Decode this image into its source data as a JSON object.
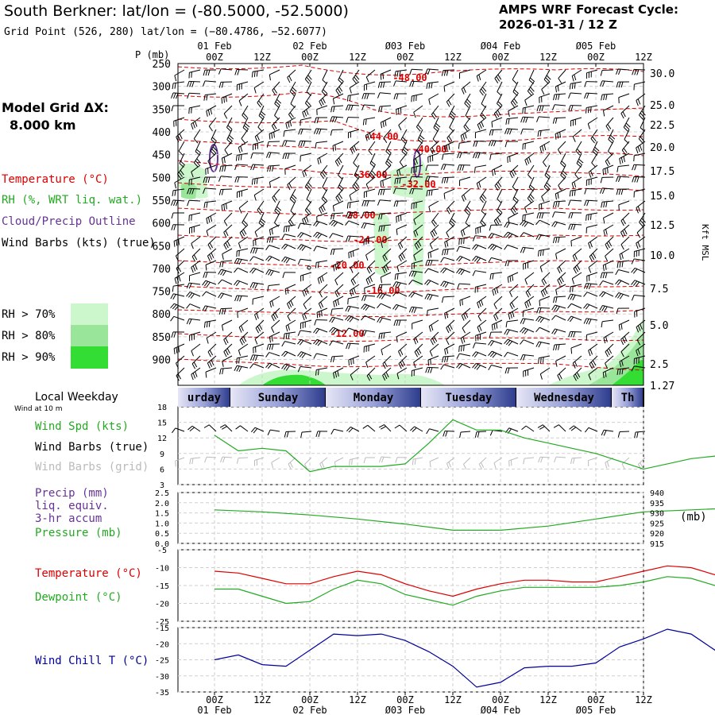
{
  "header": {
    "title": "South Berkner: lat/lon = (-80.5000, -52.5000)",
    "grid_point": "Grid Point (526, 280) lat/lon = (−80.4786, −52.6077)",
    "cycle_label": "AMPS WRF Forecast Cycle:",
    "cycle_value": "2026-01-31 / 12  Z"
  },
  "sidebar": {
    "model_grid_label": "Model Grid ΔX:",
    "model_grid_value": "8.000 km",
    "legend": [
      {
        "label": "Temperature (°C)",
        "color": "#dd0000"
      },
      {
        "label": "RH (%, WRT liq. wat.)",
        "color": "#22aa22"
      },
      {
        "label": "Cloud/Precip Outline",
        "color": "#663399"
      },
      {
        "label": "Wind Barbs (kts) (true)",
        "color": "#000000"
      }
    ],
    "rh_legend": [
      {
        "label": "RH > 70%",
        "color": "#ccf6cc"
      },
      {
        "label": "RH > 80%",
        "color": "#99e599"
      },
      {
        "label": "RH > 90%",
        "color": "#33dd33"
      }
    ],
    "local_weekday": "Local Weekday",
    "wind_at_10m": "Wind at 10 m",
    "wind_legend": [
      {
        "label": "Wind Spd (kts)",
        "color": "#22aa22"
      },
      {
        "label": "Wind Barbs (true)",
        "color": "#000000"
      },
      {
        "label": "Wind Barbs (grid)",
        "color": "#bbbbbb"
      }
    ],
    "precip_legend": [
      {
        "label": "Precip (mm)",
        "color": "#663399"
      },
      {
        "label": "liq. equiv.",
        "color": "#663399"
      },
      {
        "label": "3-hr accum",
        "color": "#663399"
      },
      {
        "label": "Pressure (mb)",
        "color": "#22aa22"
      }
    ],
    "temp_legend": [
      {
        "label": "Temperature (°C)",
        "color": "#dd0000"
      },
      {
        "label": "Dewpoint (°C)",
        "color": "#22aa22"
      }
    ],
    "chill_legend": [
      {
        "label": "Wind Chill T (°C)",
        "color": "#000099"
      }
    ],
    "pressure_unit": "(mb)"
  },
  "colors": {
    "temperature": "#dd0000",
    "dewpoint": "#22aa22",
    "windspeed": "#22aa22",
    "pressure": "#22aa22",
    "windchill": "#000099",
    "cloud": "#663399"
  },
  "chart_data": [
    {
      "type": "cross-section",
      "title": "Vertical time section",
      "y_label": "P (mb)",
      "y_label_right": "Kft MSL",
      "pressure_ticks": [
        "250",
        "300",
        "350",
        "400",
        "450",
        "500",
        "550",
        "600",
        "650",
        "700",
        "750",
        "800",
        "850",
        "900"
      ],
      "height_ticks": [
        "30.0",
        "25.0",
        "22.5",
        "20.0",
        "17.5",
        "15.0",
        "12.5",
        "10.0",
        "7.5",
        "5.0",
        "2.5",
        "1.27"
      ],
      "time_ticks_top": [
        "00Z",
        "12Z",
        "00Z",
        "12Z",
        "00Z",
        "12Z",
        "00Z",
        "12Z",
        "00Z",
        "12Z"
      ],
      "date_labels_top": [
        "01 Feb",
        "02 Feb",
        "Ø03 Feb",
        "Ø04 Feb",
        "Ø05 Feb"
      ],
      "temperature_contour_labels": [
        "-48.00",
        "-44.00",
        "-40.00",
        "-36.00",
        "-32.00",
        "-28.00",
        "-24.00",
        "-20.00",
        "-16.00",
        "-12.00"
      ]
    },
    {
      "type": "weekday-band",
      "days": [
        "urday",
        "Sunday",
        "Monday",
        "Tuesday",
        "Wednesday",
        "Th"
      ]
    },
    {
      "type": "line",
      "title": "Wind Speed",
      "ylim": [
        3,
        18
      ],
      "yticks": [
        "18",
        "15",
        "12",
        "9",
        "6",
        "3"
      ],
      "x_hours": [
        0,
        6,
        12,
        18,
        24,
        30,
        36,
        42,
        48,
        54,
        60,
        66,
        72,
        78,
        84,
        90,
        96,
        102,
        108,
        114,
        120,
        126,
        132,
        138,
        144,
        150,
        156,
        162,
        168
      ],
      "series": [
        {
          "name": "Wind Spd (kts)",
          "values": [
            12.5,
            9.5,
            10,
            9.5,
            5.5,
            6.5,
            6.5,
            6.5,
            7,
            11,
            15.5,
            13.5,
            13.5,
            12,
            11,
            10,
            9,
            7.5,
            6,
            7,
            8,
            8.5,
            9,
            6,
            7,
            8.5,
            8,
            8,
            7
          ]
        }
      ]
    },
    {
      "type": "line",
      "title": "Pressure",
      "ylim": [
        915,
        940
      ],
      "yticks_left": [
        "2.5",
        "2.0",
        "1.5",
        "1.0",
        "0.5",
        "0.0"
      ],
      "yticks_right": [
        "940",
        "935",
        "930",
        "925",
        "920",
        "915"
      ],
      "x_hours": [
        0,
        12,
        24,
        36,
        48,
        60,
        72,
        84,
        96,
        108,
        120,
        132,
        144,
        156,
        168
      ],
      "series": [
        {
          "name": "Pressure (mb)",
          "values": [
            931.5,
            930.5,
            929,
            927,
            924.5,
            921.5,
            921.5,
            923.5,
            927,
            930.5,
            931.5,
            932.5,
            933,
            934.5,
            935
          ]
        }
      ]
    },
    {
      "type": "line",
      "title": "Temperature / Dewpoint",
      "ylim": [
        -25,
        -5
      ],
      "yticks": [
        "-5",
        "-10",
        "-15",
        "-20",
        "-25"
      ],
      "x_hours": [
        0,
        6,
        12,
        18,
        24,
        30,
        36,
        42,
        48,
        54,
        60,
        66,
        72,
        78,
        84,
        90,
        96,
        102,
        108,
        114,
        120,
        126,
        132,
        138,
        144,
        150,
        156,
        162,
        168
      ],
      "series": [
        {
          "name": "Temperature (°C)",
          "values": [
            -11,
            -11.5,
            -13,
            -14.5,
            -14.5,
            -12.5,
            -11,
            -12,
            -14.5,
            -16.5,
            -18,
            -16,
            -14.5,
            -13.5,
            -13.5,
            -14,
            -14,
            -12.5,
            -11,
            -9.5,
            -10,
            -12,
            -13,
            -10.5,
            -10,
            -11.5,
            -13,
            -13,
            -11.5
          ]
        },
        {
          "name": "Dewpoint (°C)",
          "values": [
            -16,
            -16,
            -18,
            -20,
            -19.5,
            -16,
            -13.5,
            -14.5,
            -17.5,
            -19,
            -20.5,
            -18,
            -16.5,
            -15.5,
            -15.5,
            -15.5,
            -15.5,
            -15,
            -14,
            -12.5,
            -13,
            -15,
            -15.5,
            -13.5,
            -13,
            -14,
            -15.5,
            -15.5,
            -13.5
          ]
        }
      ]
    },
    {
      "type": "line",
      "title": "Wind Chill",
      "ylim": [
        -35,
        -15
      ],
      "yticks": [
        "-15",
        "-20",
        "-25",
        "-30",
        "-35"
      ],
      "x_hours": [
        0,
        6,
        12,
        18,
        24,
        30,
        36,
        42,
        48,
        54,
        60,
        66,
        72,
        78,
        84,
        90,
        96,
        102,
        108,
        114,
        120,
        126,
        132,
        138,
        144,
        150,
        156,
        162,
        168
      ],
      "series": [
        {
          "name": "Wind Chill T (°C)",
          "values": [
            -25,
            -23.5,
            -26.5,
            -27,
            -22,
            -17,
            -17.5,
            -17,
            -19,
            -22.5,
            -27,
            -33.5,
            -32,
            -27.5,
            -27,
            -27,
            -26,
            -21,
            -18.5,
            -15.5,
            -17,
            -22,
            -24.5,
            -19.5,
            -18.5,
            -21,
            -21,
            -23,
            -19
          ]
        }
      ]
    }
  ],
  "bottom_axis": {
    "time_ticks": [
      "00Z",
      "12Z",
      "00Z",
      "12Z",
      "00Z",
      "12Z",
      "00Z",
      "12Z",
      "00Z",
      "12Z"
    ],
    "date_labels": [
      "01 Feb",
      "02 Feb",
      "Ø03 Feb",
      "Ø04 Feb",
      "Ø05 Feb"
    ]
  }
}
